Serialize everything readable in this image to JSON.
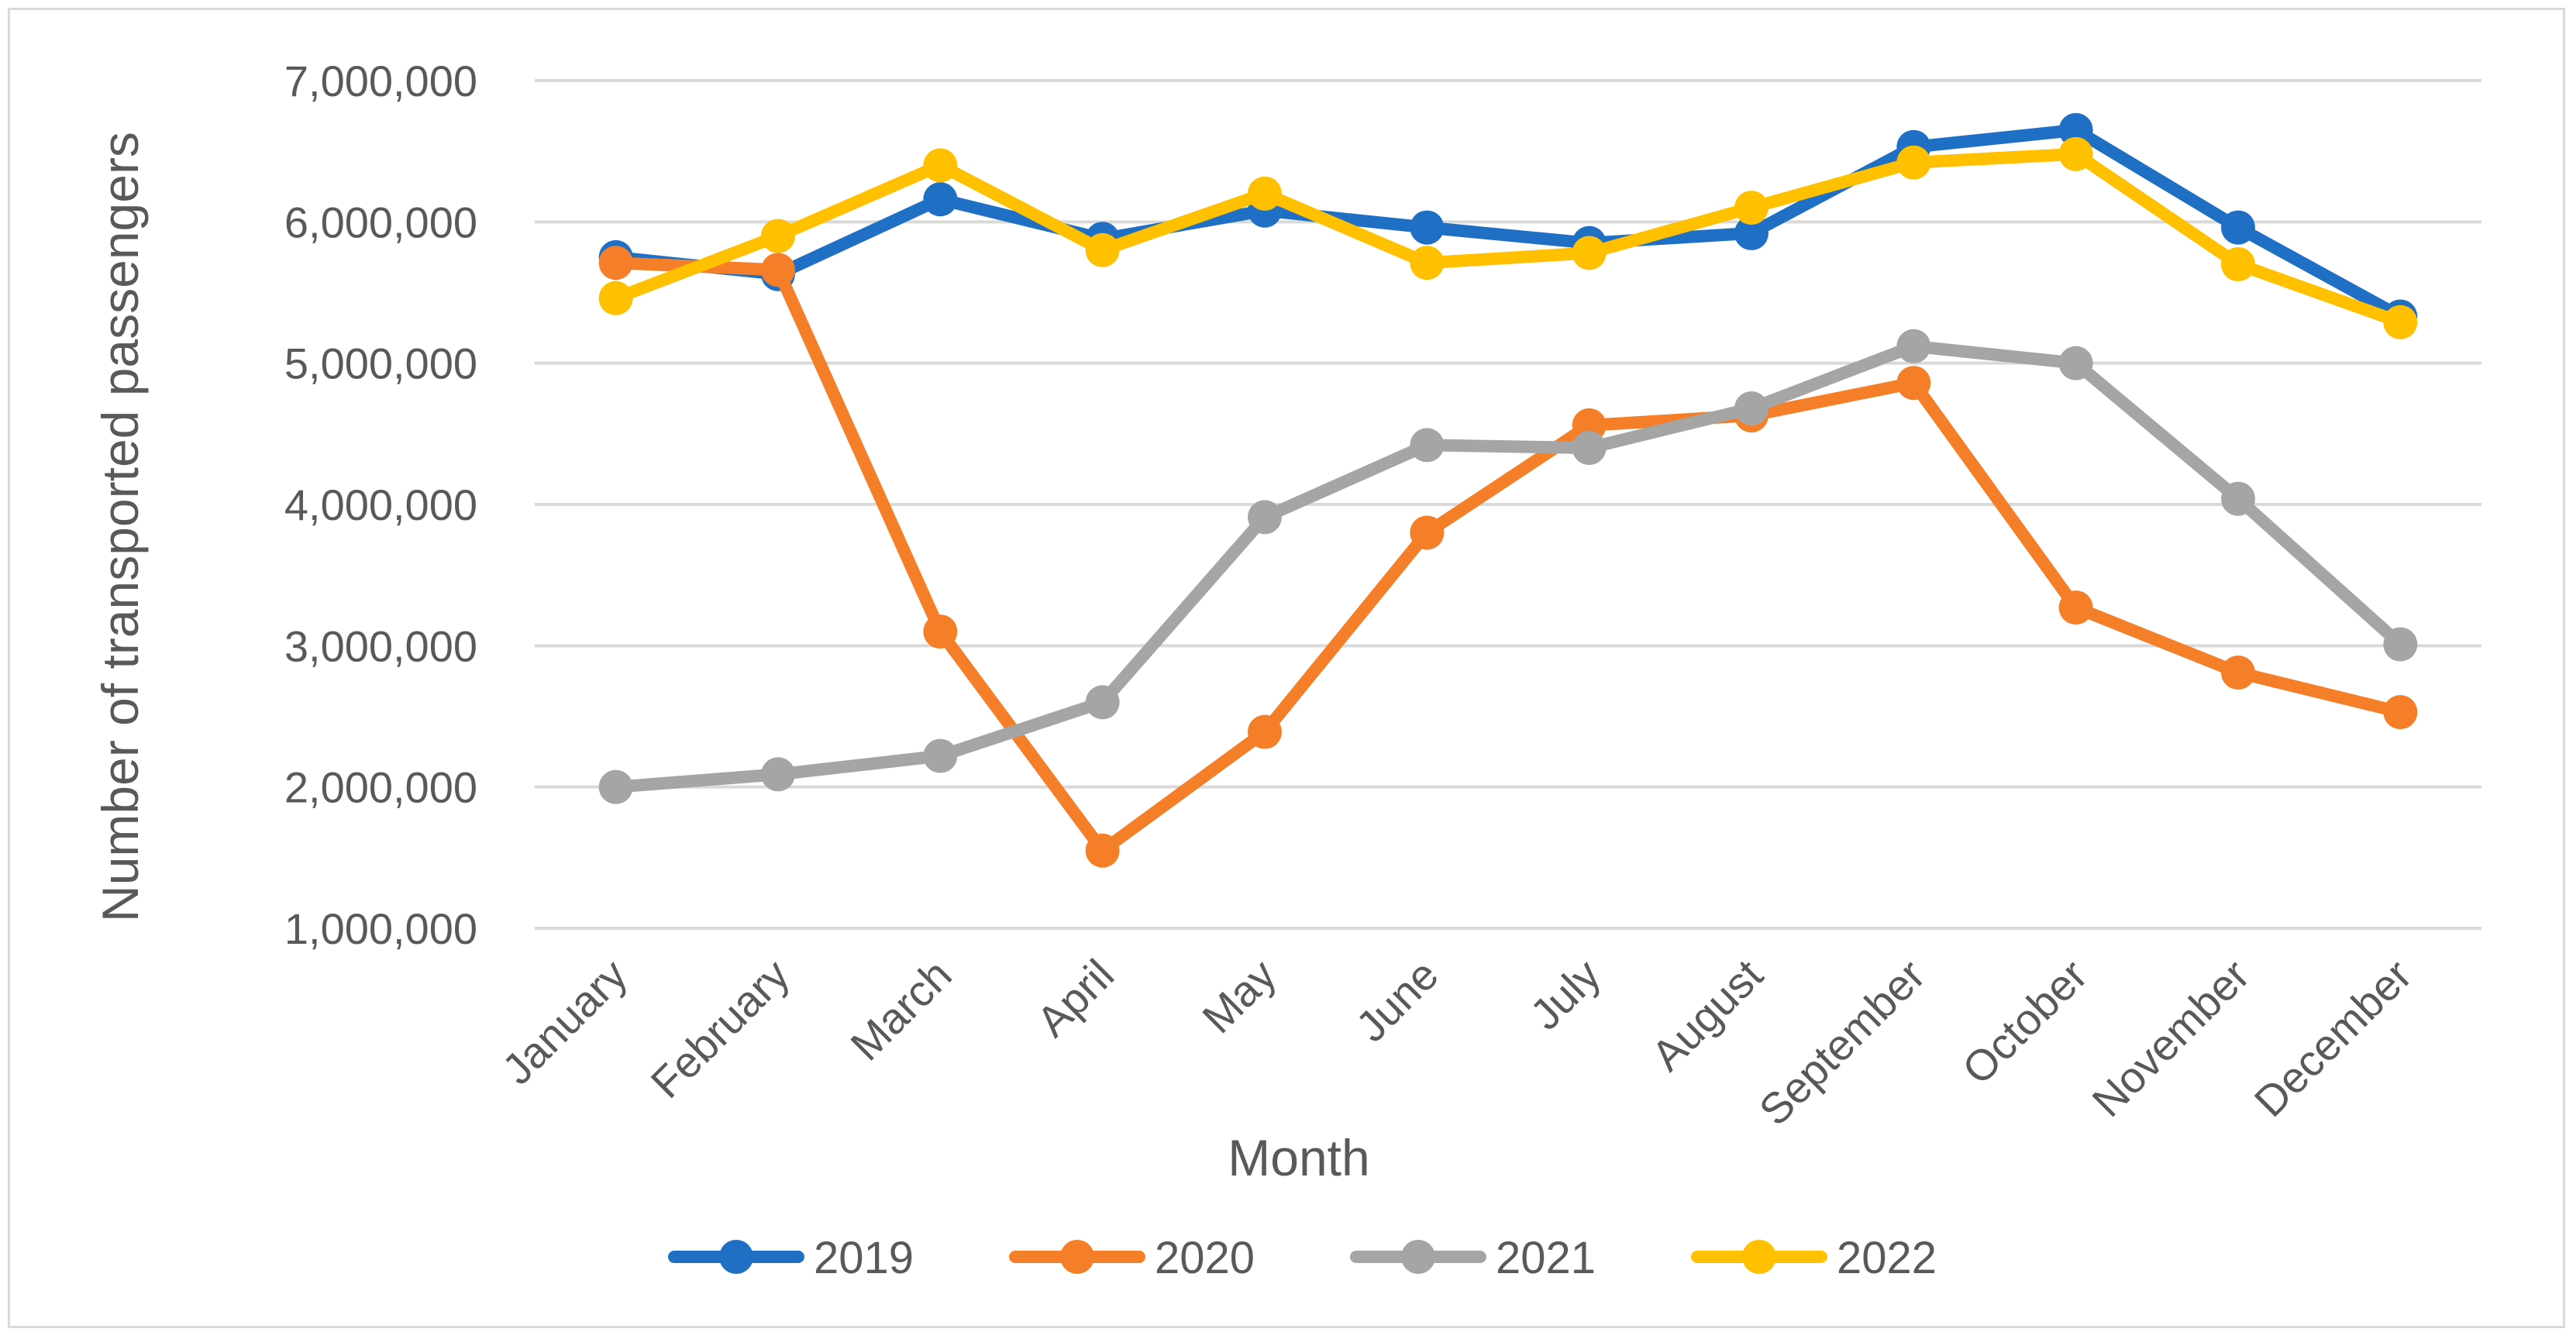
{
  "chart_data": {
    "type": "line",
    "title": "",
    "xlabel": "Month",
    "ylabel": "Number of transported passengers",
    "categories": [
      "January",
      "February",
      "March",
      "April",
      "May",
      "June",
      "July",
      "August",
      "September",
      "October",
      "November",
      "December"
    ],
    "ylim": [
      1000000,
      7000000
    ],
    "yticks": [
      1000000,
      2000000,
      3000000,
      4000000,
      5000000,
      6000000,
      7000000
    ],
    "ytick_labels": [
      "1,000,000",
      "2,000,000",
      "3,000,000",
      "4,000,000",
      "5,000,000",
      "6,000,000",
      "7,000,000"
    ],
    "grid": true,
    "legend_position": "bottom",
    "series": [
      {
        "name": "2019",
        "color": "#1f6fc5",
        "values": [
          5750000,
          5630000,
          6160000,
          5880000,
          6080000,
          5960000,
          5850000,
          5920000,
          6530000,
          6650000,
          5960000,
          5330000
        ]
      },
      {
        "name": "2020",
        "color": "#f57f29",
        "values": [
          5710000,
          5660000,
          3100000,
          1550000,
          2390000,
          3800000,
          4560000,
          4630000,
          4860000,
          3270000,
          2810000,
          2530000
        ]
      },
      {
        "name": "2021",
        "color": "#a5a5a5",
        "values": [
          2000000,
          2090000,
          2220000,
          2600000,
          3910000,
          4420000,
          4400000,
          4680000,
          5120000,
          5000000,
          4040000,
          3010000
        ]
      },
      {
        "name": "2022",
        "color": "#ffc000",
        "values": [
          5460000,
          5900000,
          6400000,
          5800000,
          6200000,
          5710000,
          5780000,
          6100000,
          6420000,
          6480000,
          5700000,
          5290000
        ]
      }
    ]
  }
}
